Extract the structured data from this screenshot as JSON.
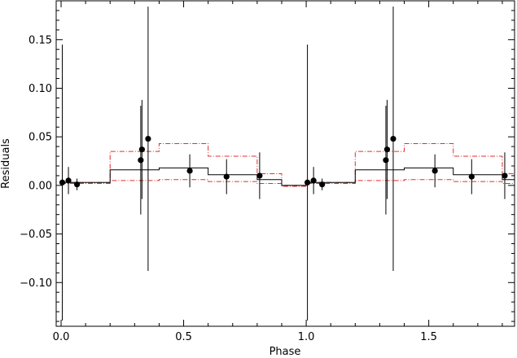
{
  "chart_data": {
    "type": "scatter",
    "title": "",
    "xlabel": "Phase",
    "ylabel": "Residuals",
    "xlim": [
      -0.02,
      1.85
    ],
    "ylim": [
      -0.145,
      0.19
    ],
    "grid": false,
    "x_ticks": [
      0.0,
      0.5,
      1.0,
      1.5
    ],
    "x_tick_labels": [
      "0.0",
      "0.5",
      "1.0",
      "1.5"
    ],
    "y_ticks": [
      -0.1,
      -0.05,
      0.0,
      0.05,
      0.1,
      0.15
    ],
    "y_tick_labels": [
      "−0.10",
      "−0.05",
      "0.00",
      "0.05",
      "0.10",
      "0.15"
    ],
    "points": {
      "x": [
        0.005,
        0.03,
        0.065,
        0.325,
        0.33,
        0.355,
        0.525,
        0.675,
        0.81,
        1.005,
        1.03,
        1.065,
        1.325,
        1.33,
        1.355,
        1.525,
        1.675,
        1.81
      ],
      "y": [
        0.003,
        0.005,
        0.001,
        0.026,
        0.037,
        0.048,
        0.015,
        0.009,
        0.01,
        0.003,
        0.005,
        0.001,
        0.026,
        0.037,
        0.048,
        0.015,
        0.009,
        0.01
      ],
      "err": [
        0.142,
        0.014,
        0.006,
        0.056,
        0.051,
        0.136,
        0.017,
        0.018,
        0.024,
        0.142,
        0.014,
        0.006,
        0.056,
        0.051,
        0.136,
        0.017,
        0.018,
        0.024
      ]
    },
    "model_steps": {
      "edges": [
        0.0,
        0.2,
        0.4,
        0.6,
        0.8,
        0.9,
        1.0,
        1.2,
        1.4,
        1.6,
        1.8,
        1.85
      ],
      "mean": [
        0.003,
        0.016,
        0.018,
        0.011,
        0.006,
        0.0,
        0.003,
        0.016,
        0.018,
        0.011,
        0.006
      ],
      "upper": [
        0.003,
        0.035,
        0.043,
        0.03,
        0.012,
        0.0,
        0.003,
        0.035,
        0.043,
        0.03,
        0.012
      ],
      "lower": [
        0.002,
        0.005,
        0.006,
        0.004,
        0.002,
        -0.001,
        0.002,
        0.005,
        0.006,
        0.004,
        0.002
      ]
    },
    "colors": {
      "data": "#000000",
      "mean": "#000000",
      "bounds": "#e03030"
    }
  }
}
